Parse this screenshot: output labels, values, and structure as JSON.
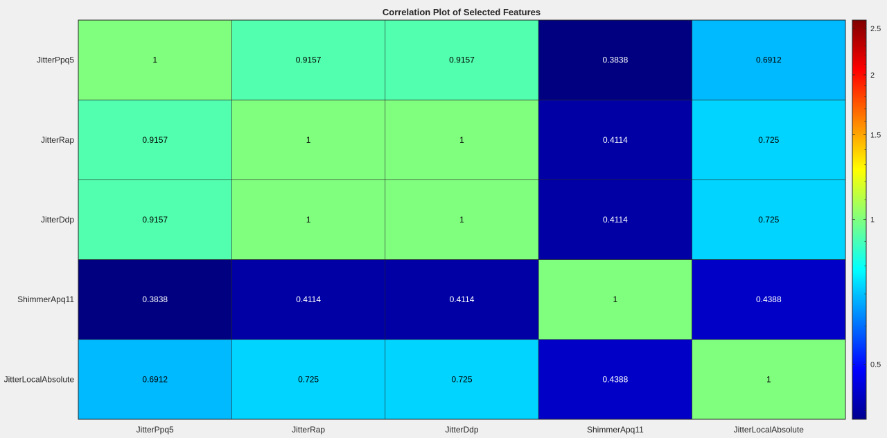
{
  "chart_data": {
    "type": "heatmap",
    "title": "Correlation Plot of Selected Features",
    "x_categories": [
      "JitterPpq5",
      "JitterRap",
      "JitterDdp",
      "ShimmerApq11",
      "JitterLocalAbsolute"
    ],
    "y_categories": [
      "JitterPpq5",
      "JitterRap",
      "JitterDdp",
      "ShimmerApq11",
      "JitterLocalAbsolute"
    ],
    "values": [
      [
        1,
        0.9157,
        0.9157,
        0.3838,
        0.6912
      ],
      [
        0.9157,
        1,
        1,
        0.4114,
        0.725
      ],
      [
        0.9157,
        1,
        1,
        0.4114,
        0.725
      ],
      [
        0.3838,
        0.4114,
        0.4114,
        1,
        0.4388
      ],
      [
        0.6912,
        0.725,
        0.725,
        0.4388,
        1
      ]
    ],
    "value_labels": [
      [
        "1",
        "0.9157",
        "0.9157",
        "0.3838",
        "0.6912"
      ],
      [
        "0.9157",
        "1",
        "1",
        "0.4114",
        "0.725"
      ],
      [
        "0.9157",
        "1",
        "1",
        "0.4114",
        "0.725"
      ],
      [
        "0.3838",
        "0.4114",
        "0.4114",
        "1",
        "0.4388"
      ],
      [
        "0.6912",
        "0.725",
        "0.725",
        "0.4388",
        "1"
      ]
    ],
    "colormap": "jet",
    "colorbar": {
      "scale": "log",
      "range": [
        0.3838,
        2.6
      ],
      "ticks": [
        0.5,
        1,
        1.5,
        2,
        2.5
      ],
      "tick_labels": [
        "0.5",
        "1",
        "1.5",
        "2",
        "2.5"
      ],
      "placement": "right"
    }
  }
}
